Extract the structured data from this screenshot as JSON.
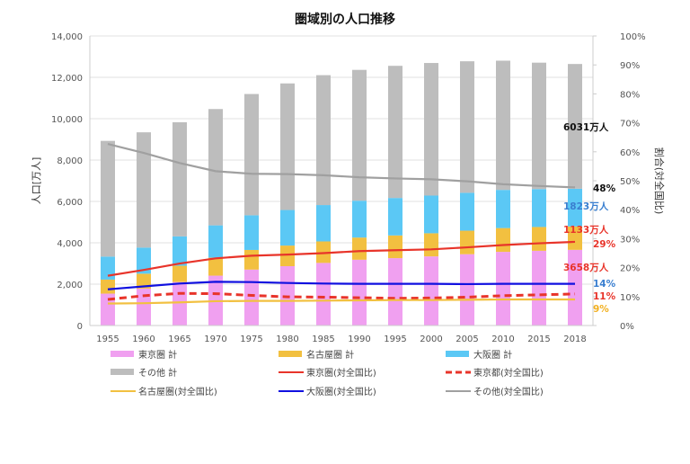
{
  "chart_data": {
    "type": "bar",
    "title": "圏域別の人口推移",
    "ylabel": "人口[万人]",
    "y2label": "割合(対全国比)",
    "ylim": [
      0,
      14000
    ],
    "y2lim": [
      0,
      100
    ],
    "yticks": [
      "0",
      "2,000",
      "4,000",
      "6,000",
      "8,000",
      "10,000",
      "12,000",
      "14,000"
    ],
    "y2ticks": [
      "0%",
      "10%",
      "20%",
      "30%",
      "40%",
      "50%",
      "60%",
      "70%",
      "80%",
      "90%",
      "100%"
    ],
    "grid": true,
    "legend_position": "bottom",
    "categories": [
      "1955",
      "1960",
      "1965",
      "1970",
      "1975",
      "1980",
      "1985",
      "1990",
      "1995",
      "2000",
      "2005",
      "2010",
      "2015",
      "2018"
    ],
    "bar_series": [
      {
        "name": "東京圏 計",
        "color": "#f0a0f0",
        "values": [
          1542,
          1786,
          2102,
          2411,
          2704,
          2870,
          3027,
          3180,
          3258,
          3342,
          3448,
          3561,
          3613,
          3658
        ]
      },
      {
        "name": "名古屋圏 計",
        "color": "#f2c040",
        "values": [
          678,
          720,
          787,
          869,
          950,
          996,
          1039,
          1073,
          1098,
          1118,
          1137,
          1151,
          1151,
          1133
        ]
      },
      {
        "name": "大阪圏 計",
        "color": "#5bc8f5",
        "values": [
          1112,
          1261,
          1422,
          1563,
          1676,
          1719,
          1758,
          1782,
          1811,
          1823,
          1833,
          1846,
          1834,
          1823
        ]
      },
      {
        "name": "その他 計",
        "color": "#bdbdbd",
        "values": [
          5596,
          5575,
          5517,
          5624,
          5864,
          6121,
          6281,
          6326,
          6390,
          6410,
          6359,
          6248,
          6111,
          6031
        ]
      }
    ],
    "line_series": [
      {
        "name": "東京圏(対全国比)",
        "color": "#e8342a",
        "dashed": false,
        "values": [
          17.2,
          19.2,
          21.4,
          23.2,
          24.1,
          24.5,
          25.0,
          25.7,
          26.0,
          26.3,
          27.0,
          27.8,
          28.4,
          28.9
        ]
      },
      {
        "name": "東京都(対全国比)",
        "color": "#e8342a",
        "dashed": true,
        "values": [
          9.0,
          10.3,
          11.1,
          11.0,
          10.4,
          9.9,
          9.8,
          9.6,
          9.4,
          9.5,
          9.8,
          10.3,
          10.6,
          10.9
        ]
      },
      {
        "name": "名古屋圏(対全国比)",
        "color": "#f2c040",
        "dashed": false,
        "values": [
          7.6,
          7.7,
          8.0,
          8.4,
          8.5,
          8.5,
          8.6,
          8.7,
          8.8,
          8.8,
          8.9,
          9.0,
          9.0,
          9.0
        ]
      },
      {
        "name": "大阪圏(対全国比)",
        "color": "#1010e0",
        "dashed": false,
        "values": [
          12.5,
          13.5,
          14.5,
          15.1,
          15.0,
          14.7,
          14.5,
          14.4,
          14.4,
          14.4,
          14.3,
          14.4,
          14.4,
          14.4
        ]
      },
      {
        "name": "その他(対全国比)",
        "color": "#a0a0a0",
        "dashed": false,
        "values": [
          62.7,
          59.6,
          56.1,
          53.3,
          52.4,
          52.3,
          51.9,
          51.2,
          50.8,
          50.5,
          49.8,
          48.8,
          48.2,
          47.7
        ]
      }
    ],
    "annotations": [
      {
        "text": "6031万人",
        "color": "#111111"
      },
      {
        "text": "48%",
        "color": "#111111"
      },
      {
        "text": "1823万人",
        "color": "#3a7fd0"
      },
      {
        "text": "1133万人",
        "color": "#e8342a"
      },
      {
        "text": "29%",
        "color": "#e8342a"
      },
      {
        "text": "3658万人",
        "color": "#e8342a"
      },
      {
        "text": "14%",
        "color": "#3a7fd0"
      },
      {
        "text": "11%",
        "color": "#e8342a"
      },
      {
        "text": "9%",
        "color": "#f2b020"
      }
    ]
  }
}
